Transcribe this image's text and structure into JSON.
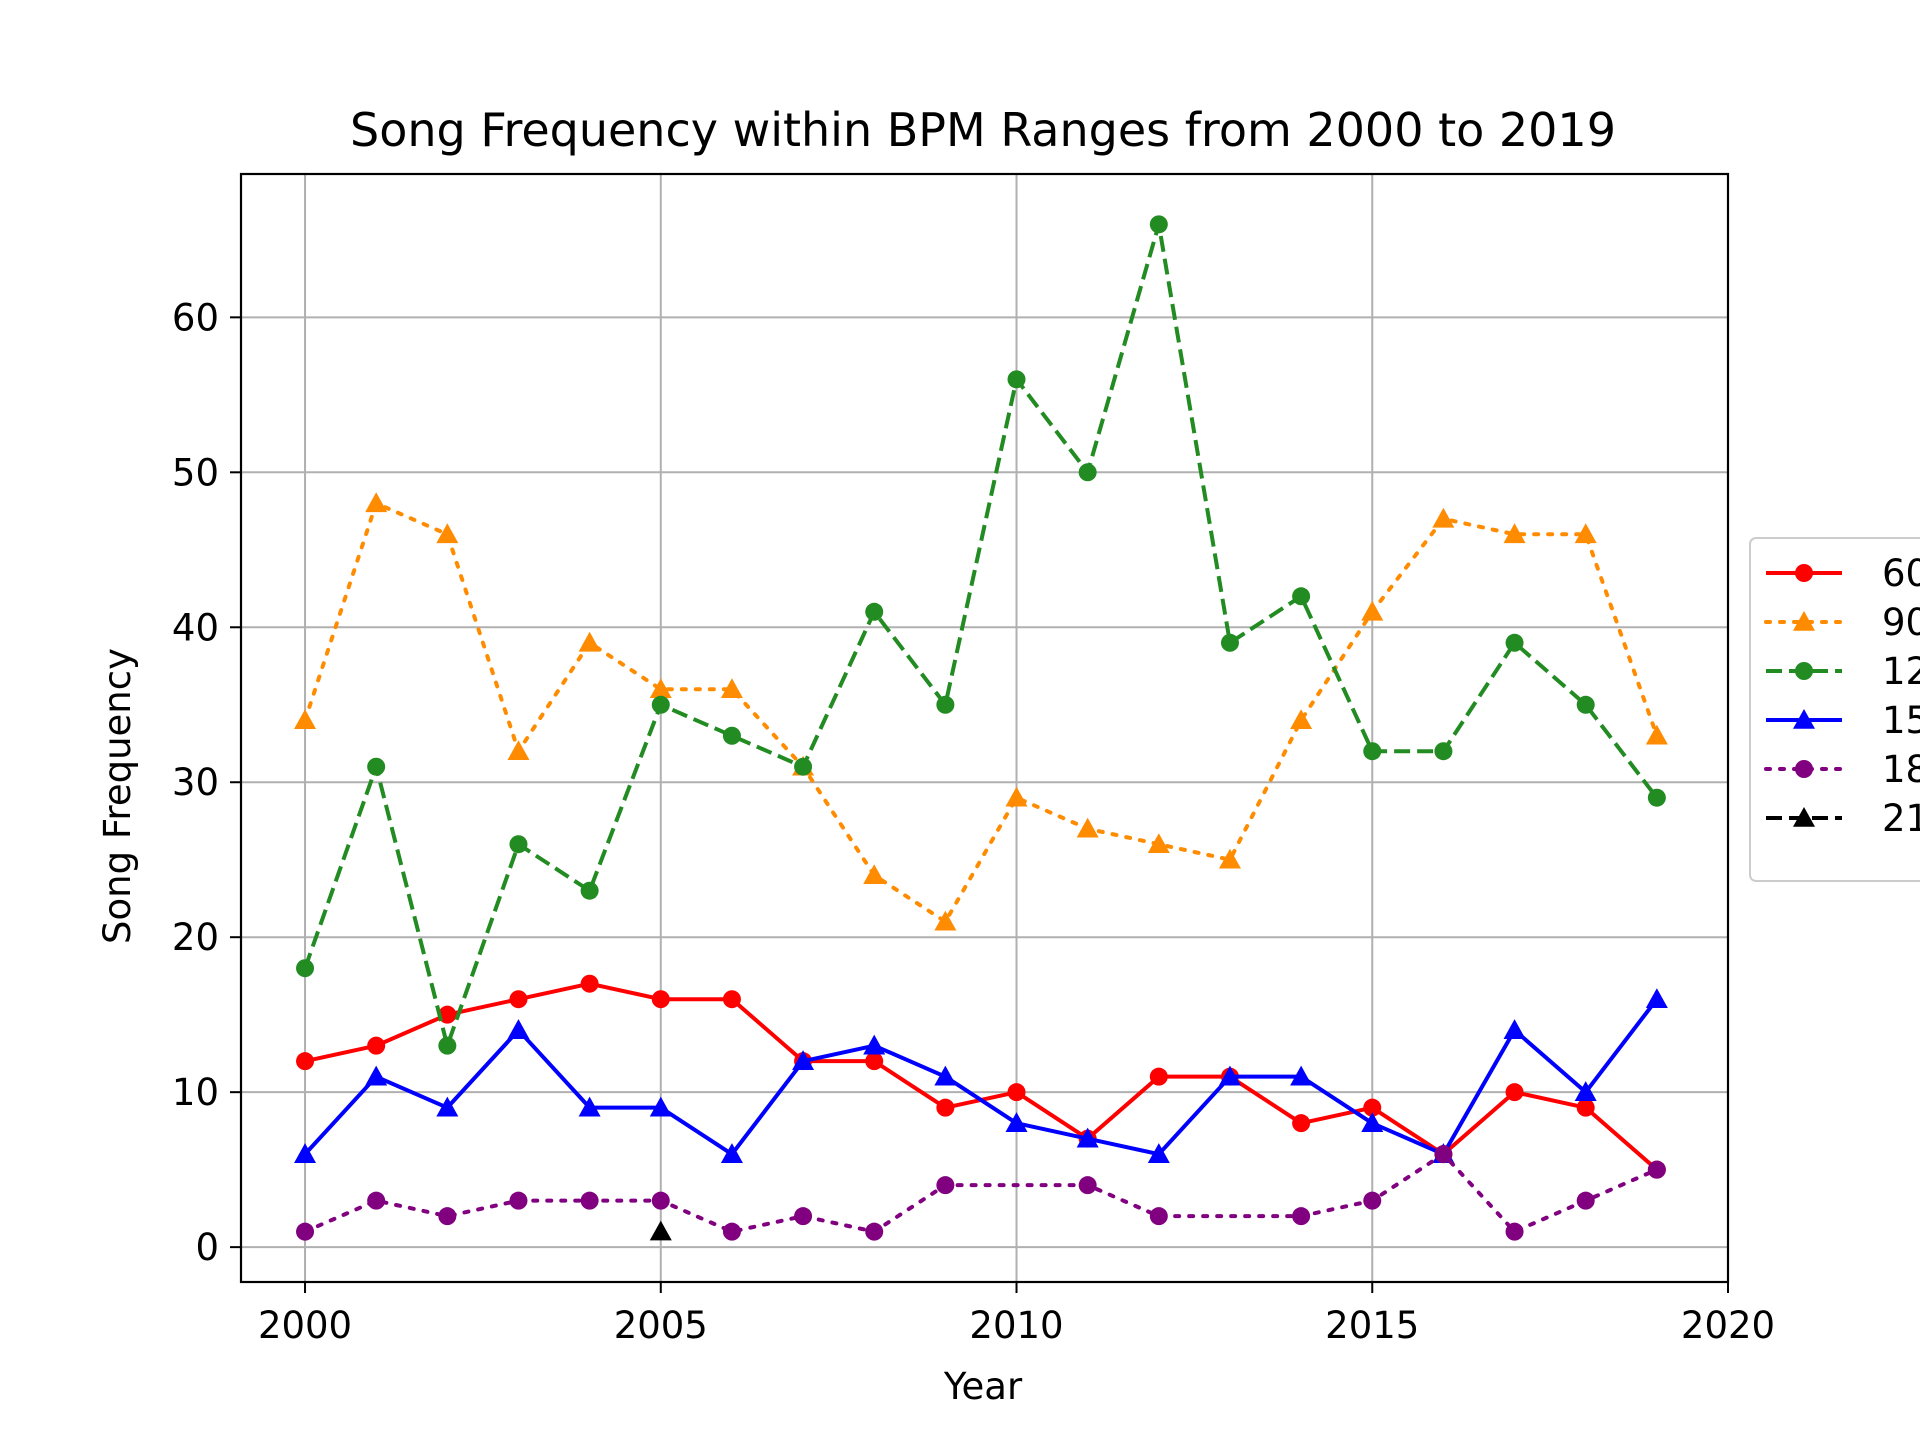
{
  "chart_data": {
    "type": "line",
    "title": "Song Frequency within BPM Ranges from 2000 to 2019",
    "xlabel": "Year",
    "ylabel": "Song Frequency",
    "xlim": [
      1999.1,
      2020
    ],
    "ylim": [
      -2.25,
      69.25
    ],
    "xticks": [
      2000,
      2005,
      2010,
      2015,
      2020
    ],
    "yticks": [
      0,
      10,
      20,
      30,
      40,
      50,
      60
    ],
    "grid": true,
    "legend_placement": "right, outside plot (cut off by image edge)",
    "x": [
      2000,
      2001,
      2002,
      2003,
      2004,
      2005,
      2006,
      2007,
      2008,
      2009,
      2010,
      2011,
      2012,
      2013,
      2014,
      2015,
      2016,
      2017,
      2018,
      2019
    ],
    "series": [
      {
        "legend_label": "60",
        "color": "#ff0000",
        "line_style": "solid",
        "marker": "circle",
        "values": [
          12,
          13,
          15,
          16,
          17,
          16,
          16,
          12,
          12,
          9,
          10,
          7,
          11,
          11,
          8,
          9,
          6,
          10,
          9,
          5
        ]
      },
      {
        "legend_label": "90",
        "color": "#ff8c00",
        "line_style": "dotted",
        "marker": "triangle",
        "values": [
          34,
          48,
          46,
          32,
          39,
          36,
          36,
          31,
          24,
          21,
          29,
          27,
          26,
          25,
          34,
          41,
          47,
          46,
          46,
          33
        ]
      },
      {
        "legend_label": "12",
        "color": "#228b22",
        "line_style": "dashed",
        "marker": "circle",
        "values": [
          18,
          31,
          13,
          26,
          23,
          35,
          33,
          31,
          41,
          35,
          56,
          50,
          66,
          39,
          42,
          32,
          32,
          39,
          35,
          29
        ]
      },
      {
        "legend_label": "15",
        "color": "#0000ff",
        "line_style": "solid",
        "marker": "triangle",
        "values": [
          6,
          11,
          9,
          14,
          9,
          9,
          6,
          12,
          13,
          11,
          8,
          7,
          6,
          11,
          11,
          8,
          6,
          14,
          10,
          16
        ]
      },
      {
        "legend_label": "18",
        "color": "#800080",
        "line_style": "dotted",
        "marker": "circle",
        "values": [
          1,
          3,
          2,
          3,
          3,
          3,
          1,
          2,
          1,
          4,
          null,
          4,
          2,
          null,
          2,
          3,
          6,
          1,
          3,
          5
        ],
        "line_values": [
          1,
          3,
          2,
          3,
          3,
          3,
          1,
          2,
          1,
          4,
          4,
          4,
          2,
          2,
          2,
          3,
          6,
          1,
          3,
          5
        ]
      },
      {
        "legend_label": "21",
        "color": "#000000",
        "line_style": "dashed",
        "marker": "triangle",
        "values": [
          null,
          null,
          null,
          null,
          null,
          1,
          null,
          null,
          null,
          null,
          null,
          null,
          null,
          null,
          null,
          null,
          null,
          null,
          null,
          null
        ]
      }
    ]
  }
}
